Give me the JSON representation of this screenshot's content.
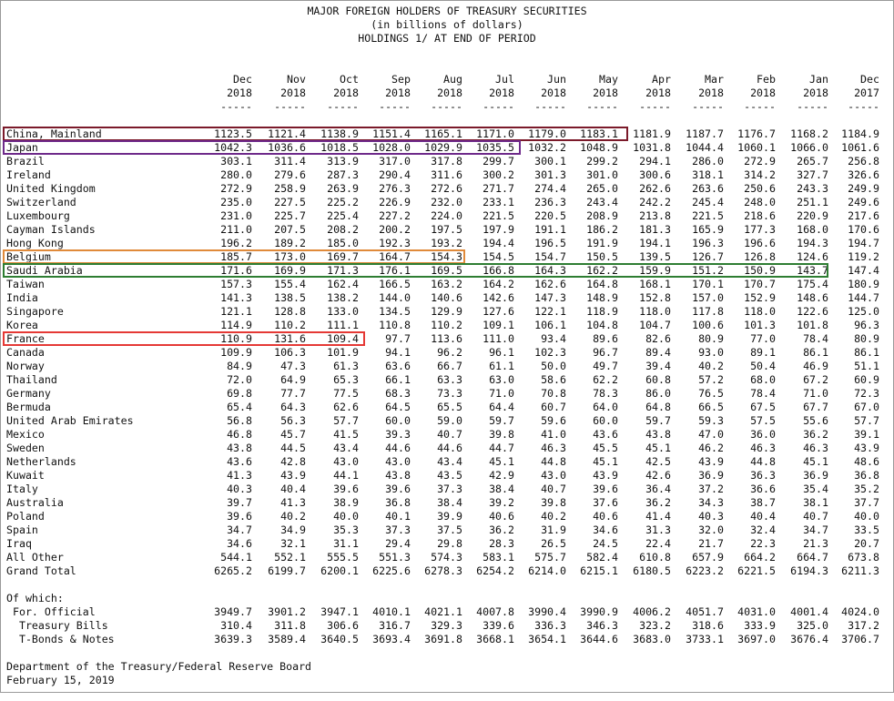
{
  "header": {
    "title": "MAJOR FOREIGN HOLDERS OF TREASURY SECURITIES",
    "subtitle": "(in billions of dollars)",
    "subtitle2": "HOLDINGS 1/ AT END OF PERIOD"
  },
  "columns": [
    {
      "month": "Dec",
      "year": "2018"
    },
    {
      "month": "Nov",
      "year": "2018"
    },
    {
      "month": "Oct",
      "year": "2018"
    },
    {
      "month": "Sep",
      "year": "2018"
    },
    {
      "month": "Aug",
      "year": "2018"
    },
    {
      "month": "Jul",
      "year": "2018"
    },
    {
      "month": "Jun",
      "year": "2018"
    },
    {
      "month": "May",
      "year": "2018"
    },
    {
      "month": "Apr",
      "year": "2018"
    },
    {
      "month": "Mar",
      "year": "2018"
    },
    {
      "month": "Feb",
      "year": "2018"
    },
    {
      "month": "Jan",
      "year": "2018"
    },
    {
      "month": "Dec",
      "year": "2017"
    }
  ],
  "separator": "-----",
  "rows": [
    {
      "country": "China, Mainland",
      "values": [
        "1123.5",
        "1121.4",
        "1138.9",
        "1151.4",
        "1165.1",
        "1171.0",
        "1179.0",
        "1183.1",
        "1181.9",
        "1187.7",
        "1176.7",
        "1168.2",
        "1184.9"
      ]
    },
    {
      "country": "Japan",
      "values": [
        "1042.3",
        "1036.6",
        "1018.5",
        "1028.0",
        "1029.9",
        "1035.5",
        "1032.2",
        "1048.9",
        "1031.8",
        "1044.4",
        "1060.1",
        "1066.0",
        "1061.6"
      ]
    },
    {
      "country": "Brazil",
      "values": [
        "303.1",
        "311.4",
        "313.9",
        "317.0",
        "317.8",
        "299.7",
        "300.1",
        "299.2",
        "294.1",
        "286.0",
        "272.9",
        "265.7",
        "256.8"
      ]
    },
    {
      "country": "Ireland",
      "values": [
        "280.0",
        "279.6",
        "287.3",
        "290.4",
        "311.6",
        "300.2",
        "301.3",
        "301.0",
        "300.6",
        "318.1",
        "314.2",
        "327.7",
        "326.6"
      ]
    },
    {
      "country": "United Kingdom",
      "values": [
        "272.9",
        "258.9",
        "263.9",
        "276.3",
        "272.6",
        "271.7",
        "274.4",
        "265.0",
        "262.6",
        "263.6",
        "250.6",
        "243.3",
        "249.9"
      ]
    },
    {
      "country": "Switzerland",
      "values": [
        "235.0",
        "227.5",
        "225.2",
        "226.9",
        "232.0",
        "233.1",
        "236.3",
        "243.4",
        "242.2",
        "245.4",
        "248.0",
        "251.1",
        "249.6"
      ]
    },
    {
      "country": "Luxembourg",
      "values": [
        "231.0",
        "225.7",
        "225.4",
        "227.2",
        "224.0",
        "221.5",
        "220.5",
        "208.9",
        "213.8",
        "221.5",
        "218.6",
        "220.9",
        "217.6"
      ]
    },
    {
      "country": "Cayman Islands",
      "values": [
        "211.0",
        "207.5",
        "208.2",
        "200.2",
        "197.5",
        "197.9",
        "191.1",
        "186.2",
        "181.3",
        "165.9",
        "177.3",
        "168.0",
        "170.6"
      ]
    },
    {
      "country": "Hong Kong",
      "values": [
        "196.2",
        "189.2",
        "185.0",
        "192.3",
        "193.2",
        "194.4",
        "196.5",
        "191.9",
        "194.1",
        "196.3",
        "196.6",
        "194.3",
        "194.7"
      ]
    },
    {
      "country": "Belgium",
      "values": [
        "185.7",
        "173.0",
        "169.7",
        "164.7",
        "154.3",
        "154.5",
        "154.7",
        "150.5",
        "139.5",
        "126.7",
        "126.8",
        "124.6",
        "119.2"
      ]
    },
    {
      "country": "Saudi Arabia",
      "values": [
        "171.6",
        "169.9",
        "171.3",
        "176.1",
        "169.5",
        "166.8",
        "164.3",
        "162.2",
        "159.9",
        "151.2",
        "150.9",
        "143.7",
        "147.4"
      ]
    },
    {
      "country": "Taiwan",
      "values": [
        "157.3",
        "155.4",
        "162.4",
        "166.5",
        "163.2",
        "164.2",
        "162.6",
        "164.8",
        "168.1",
        "170.1",
        "170.7",
        "175.4",
        "180.9"
      ]
    },
    {
      "country": "India",
      "values": [
        "141.3",
        "138.5",
        "138.2",
        "144.0",
        "140.6",
        "142.6",
        "147.3",
        "148.9",
        "152.8",
        "157.0",
        "152.9",
        "148.6",
        "144.7"
      ]
    },
    {
      "country": "Singapore",
      "values": [
        "121.1",
        "128.8",
        "133.0",
        "134.5",
        "129.9",
        "127.6",
        "122.1",
        "118.9",
        "118.0",
        "117.8",
        "118.0",
        "122.6",
        "125.0"
      ]
    },
    {
      "country": "Korea",
      "values": [
        "114.9",
        "110.2",
        "111.1",
        "110.8",
        "110.2",
        "109.1",
        "106.1",
        "104.8",
        "104.7",
        "100.6",
        "101.3",
        "101.8",
        "96.3"
      ]
    },
    {
      "country": "France",
      "values": [
        "110.9",
        "131.6",
        "109.4",
        "97.7",
        "113.6",
        "111.0",
        "93.4",
        "89.6",
        "82.6",
        "80.9",
        "77.0",
        "78.4",
        "80.9"
      ]
    },
    {
      "country": "Canada",
      "values": [
        "109.9",
        "106.3",
        "101.9",
        "94.1",
        "96.2",
        "96.1",
        "102.3",
        "96.7",
        "89.4",
        "93.0",
        "89.1",
        "86.1",
        "86.1"
      ]
    },
    {
      "country": "Norway",
      "values": [
        "84.9",
        "47.3",
        "61.3",
        "63.6",
        "66.7",
        "61.1",
        "50.0",
        "49.7",
        "39.4",
        "40.2",
        "50.4",
        "46.9",
        "51.1"
      ]
    },
    {
      "country": "Thailand",
      "values": [
        "72.0",
        "64.9",
        "65.3",
        "66.1",
        "63.3",
        "63.0",
        "58.6",
        "62.2",
        "60.8",
        "57.2",
        "68.0",
        "67.2",
        "60.9"
      ]
    },
    {
      "country": "Germany",
      "values": [
        "69.8",
        "77.7",
        "77.5",
        "68.3",
        "73.3",
        "71.0",
        "70.8",
        "78.3",
        "86.0",
        "76.5",
        "78.4",
        "71.0",
        "72.3"
      ]
    },
    {
      "country": "Bermuda",
      "values": [
        "65.4",
        "64.3",
        "62.6",
        "64.5",
        "65.5",
        "64.4",
        "60.7",
        "64.0",
        "64.8",
        "66.5",
        "67.5",
        "67.7",
        "67.0"
      ]
    },
    {
      "country": "United Arab Emirates",
      "values": [
        "56.8",
        "56.3",
        "57.7",
        "60.0",
        "59.0",
        "59.7",
        "59.6",
        "60.0",
        "59.7",
        "59.3",
        "57.5",
        "55.6",
        "57.7"
      ]
    },
    {
      "country": "Mexico",
      "values": [
        "46.8",
        "45.7",
        "41.5",
        "39.3",
        "40.7",
        "39.8",
        "41.0",
        "43.6",
        "43.8",
        "47.0",
        "36.0",
        "36.2",
        "39.1"
      ]
    },
    {
      "country": "Sweden",
      "values": [
        "43.8",
        "44.5",
        "43.4",
        "44.6",
        "44.6",
        "44.7",
        "46.3",
        "45.5",
        "45.1",
        "46.2",
        "46.3",
        "46.3",
        "43.9"
      ]
    },
    {
      "country": "Netherlands",
      "values": [
        "43.6",
        "42.8",
        "43.0",
        "43.0",
        "43.4",
        "45.1",
        "44.8",
        "45.1",
        "42.5",
        "43.9",
        "44.8",
        "45.1",
        "48.6"
      ]
    },
    {
      "country": "Kuwait",
      "values": [
        "41.3",
        "43.9",
        "44.1",
        "43.8",
        "43.5",
        "42.9",
        "43.0",
        "43.9",
        "42.6",
        "36.9",
        "36.3",
        "36.9",
        "36.8"
      ]
    },
    {
      "country": "Italy",
      "values": [
        "40.3",
        "40.4",
        "39.6",
        "39.6",
        "37.3",
        "38.4",
        "40.7",
        "39.6",
        "36.4",
        "37.2",
        "36.6",
        "35.4",
        "35.2"
      ]
    },
    {
      "country": "Australia",
      "values": [
        "39.7",
        "41.3",
        "38.9",
        "36.8",
        "38.4",
        "39.2",
        "39.8",
        "37.6",
        "36.2",
        "34.3",
        "38.7",
        "38.1",
        "37.7"
      ]
    },
    {
      "country": "Poland",
      "values": [
        "39.6",
        "40.2",
        "40.0",
        "40.1",
        "39.9",
        "40.6",
        "40.2",
        "40.6",
        "41.4",
        "40.3",
        "40.4",
        "40.7",
        "40.0"
      ]
    },
    {
      "country": "Spain",
      "values": [
        "34.7",
        "34.9",
        "35.3",
        "37.3",
        "37.5",
        "36.2",
        "31.9",
        "34.6",
        "31.3",
        "32.0",
        "32.4",
        "34.7",
        "33.5"
      ]
    },
    {
      "country": "Iraq",
      "values": [
        "34.6",
        "32.1",
        "31.1",
        "29.4",
        "29.8",
        "28.3",
        "26.5",
        "24.5",
        "22.4",
        "21.7",
        "22.3",
        "21.3",
        "20.7"
      ]
    },
    {
      "country": "All Other",
      "values": [
        "544.1",
        "552.1",
        "555.5",
        "551.3",
        "574.3",
        "583.1",
        "575.7",
        "582.4",
        "610.8",
        "657.9",
        "664.2",
        "664.7",
        "673.8"
      ]
    },
    {
      "country": "Grand Total",
      "values": [
        "6265.2",
        "6199.7",
        "6200.1",
        "6225.6",
        "6278.3",
        "6254.2",
        "6214.0",
        "6215.1",
        "6180.5",
        "6223.2",
        "6221.5",
        "6194.3",
        "6211.3"
      ]
    }
  ],
  "of_which": {
    "label": "Of which:",
    "rows": [
      {
        "country": " For. Official",
        "values": [
          "3949.7",
          "3901.2",
          "3947.1",
          "4010.1",
          "4021.1",
          "4007.8",
          "3990.4",
          "3990.9",
          "4006.2",
          "4051.7",
          "4031.0",
          "4001.4",
          "4024.0"
        ]
      },
      {
        "country": "  Treasury Bills",
        "values": [
          "310.4",
          "311.8",
          "306.6",
          "316.7",
          "329.3",
          "339.6",
          "336.3",
          "346.3",
          "323.2",
          "318.6",
          "333.9",
          "325.0",
          "317.2"
        ]
      },
      {
        "country": "  T-Bonds & Notes",
        "values": [
          "3639.3",
          "3589.4",
          "3640.5",
          "3693.4",
          "3691.8",
          "3668.1",
          "3654.1",
          "3644.6",
          "3683.0",
          "3733.1",
          "3697.0",
          "3676.4",
          "3706.7"
        ]
      }
    ]
  },
  "footer": {
    "source": "Department of the Treasury/Federal Reserve Board",
    "date": "February 15, 2019"
  },
  "highlights": [
    {
      "row": "China, Mainland",
      "color": "#7b1a2a"
    },
    {
      "row": "Japan",
      "color": "#6e2a8a"
    },
    {
      "row": "Belgium",
      "color": "#e08a3a"
    },
    {
      "row": "Saudi Arabia",
      "color": "#2e7d32"
    },
    {
      "row": "France",
      "color": "#e53935"
    }
  ]
}
